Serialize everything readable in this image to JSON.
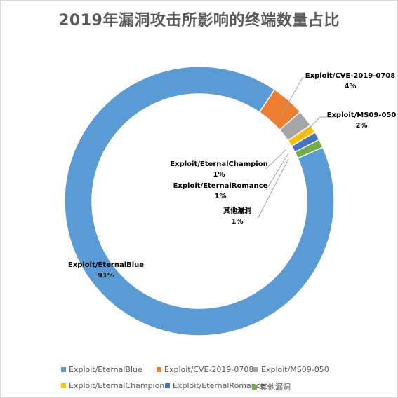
{
  "chart_data": {
    "type": "doughnut",
    "title": "2019年漏洞攻击所影响的终端数量占比",
    "categories": [
      "Exploit/EternalBlue",
      "Exploit/CVE-2019-0708",
      "Exploit/MS09-050",
      "Exploit/EternalChampion",
      "Exploit/EternalRomance",
      "其他漏洞"
    ],
    "values": [
      91,
      4,
      2,
      1,
      1,
      1
    ],
    "value_labels": [
      "91%",
      "4%",
      "2%",
      "1%",
      "1%",
      "1%"
    ],
    "colors": [
      "#5b9bd5",
      "#ed7d31",
      "#a5a5a5",
      "#ffc000",
      "#4472c4",
      "#70ad47"
    ],
    "legend_position": "bottom",
    "start_angle_deg": 0,
    "direction": "clockwise"
  }
}
